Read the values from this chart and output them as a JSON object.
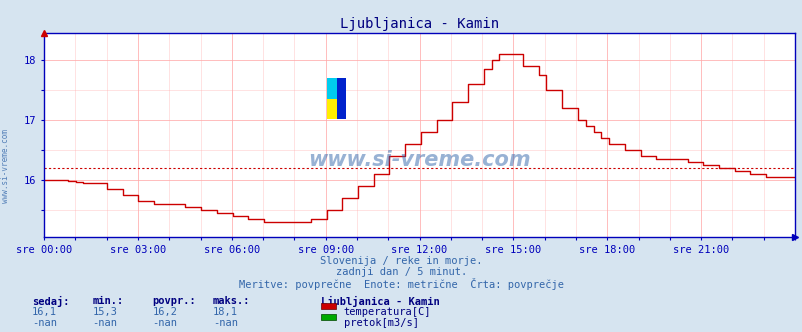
{
  "title": "Ljubljanica - Kamin",
  "title_color": "#000080",
  "bg_color": "#d6e4f0",
  "plot_bg_color": "#ffffff",
  "grid_color": "#ffaaaa",
  "axis_color": "#0000bb",
  "line_color": "#cc0000",
  "avg_line_color": "#cc0000",
  "avg_line_value": 16.2,
  "ylim_min": 15.05,
  "ylim_max": 18.45,
  "yticks": [
    16,
    17,
    18
  ],
  "xlabel_color": "#000080",
  "xtick_labels": [
    "sre 00:00",
    "sre 03:00",
    "sre 06:00",
    "sre 09:00",
    "sre 12:00",
    "sre 15:00",
    "sre 18:00",
    "sre 21:00"
  ],
  "xtick_pos": [
    0,
    3,
    6,
    9,
    12,
    15,
    18,
    21
  ],
  "watermark": "www.si-vreme.com",
  "watermark_color": "#3366aa",
  "subtitle1": "Slovenija / reke in morje.",
  "subtitle2": "zadnji dan / 5 minut.",
  "subtitle3": "Meritve: povprečne  Enote: metrične  Črta: povprečje",
  "subtitle_color": "#3366aa",
  "footer_label_color": "#000080",
  "footer_val_color": "#3366aa",
  "sedaj": "16,1",
  "min_val": "15,3",
  "povpr": "16,2",
  "maks": "18,1",
  "legend_title": "Ljubljanica - Kamin",
  "legend_temp": "temperatura[C]",
  "legend_pretok": "pretok[m3/s]",
  "temp_color": "#cc0000",
  "pretok_color": "#00aa00",
  "sidebar_text": "www.si-vreme.com",
  "n_points": 288
}
